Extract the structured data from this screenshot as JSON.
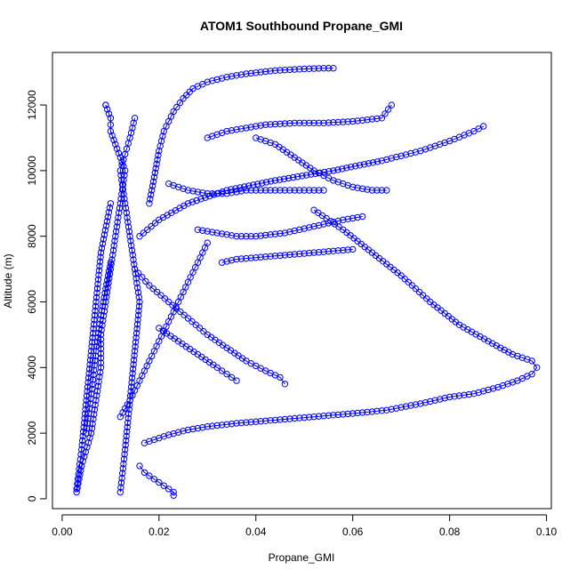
{
  "chart_data": {
    "type": "scatter",
    "title": "ATOM1 Southbound Propane_GMI",
    "xlabel": "Propane_GMI",
    "ylabel": "Altitude (m)",
    "xlim": [
      -0.002,
      0.101
    ],
    "ylim": [
      -300,
      13600
    ],
    "x_ticks": [
      0.0,
      0.02,
      0.04,
      0.06,
      0.08,
      0.1
    ],
    "x_tick_labels": [
      "0.00",
      "0.02",
      "0.04",
      "0.06",
      "0.08",
      "0.10"
    ],
    "y_ticks": [
      0,
      2000,
      4000,
      6000,
      8000,
      10000,
      12000
    ],
    "y_tick_labels": [
      "0",
      "2000",
      "4000",
      "6000",
      "8000",
      "10000",
      "12000"
    ],
    "grid": false,
    "marker": "open-circle",
    "color": "#0000ff",
    "series": [
      {
        "x": [
          0.003,
          0.004,
          0.006,
          0.007,
          0.008,
          0.008,
          0.009,
          0.01,
          0.011,
          0.012,
          0.013,
          0.012,
          0.011,
          0.01,
          0.01,
          0.009,
          0.009
        ],
        "y": [
          200,
          1000,
          2000,
          3000,
          4000,
          5000,
          6000,
          7000,
          8000,
          9000,
          10000,
          10400,
          10800,
          11200,
          11600,
          12000,
          12000
        ]
      },
      {
        "x": [
          0.012,
          0.013,
          0.014,
          0.015,
          0.016,
          0.015,
          0.014,
          0.013,
          0.012,
          0.013,
          0.014,
          0.015
        ],
        "y": [
          200,
          1500,
          3000,
          4500,
          6000,
          7000,
          8000,
          9000,
          10000,
          10500,
          11000,
          11600
        ]
      },
      {
        "x": [
          0.018,
          0.019,
          0.02,
          0.021,
          0.023,
          0.025,
          0.027,
          0.03,
          0.034,
          0.038,
          0.044,
          0.05,
          0.054,
          0.056
        ],
        "y": [
          9000,
          9800,
          10600,
          11200,
          11800,
          12200,
          12500,
          12700,
          12850,
          12950,
          13050,
          13100,
          13120,
          13120
        ]
      },
      {
        "x": [
          0.017,
          0.019,
          0.022,
          0.026,
          0.03,
          0.036,
          0.044,
          0.052,
          0.06,
          0.067,
          0.074,
          0.08,
          0.085,
          0.09,
          0.094,
          0.097,
          0.098,
          0.097,
          0.093,
          0.088,
          0.082,
          0.076,
          0.07,
          0.064,
          0.058,
          0.052
        ],
        "y": [
          1700,
          1800,
          1950,
          2100,
          2200,
          2300,
          2400,
          2500,
          2600,
          2700,
          2900,
          3100,
          3200,
          3400,
          3600,
          3800,
          4000,
          4200,
          4400,
          4800,
          5300,
          6000,
          6800,
          7500,
          8200,
          8800
        ]
      },
      {
        "x": [
          0.016,
          0.02,
          0.026,
          0.034,
          0.044,
          0.056,
          0.066,
          0.074,
          0.08,
          0.085,
          0.087
        ],
        "y": [
          8000,
          8500,
          9000,
          9400,
          9700,
          10000,
          10300,
          10600,
          10900,
          11200,
          11350
        ]
      },
      {
        "x": [
          0.015,
          0.018,
          0.022,
          0.026,
          0.03,
          0.034,
          0.038,
          0.042,
          0.045,
          0.046
        ],
        "y": [
          7000,
          6500,
          6000,
          5500,
          5000,
          4600,
          4200,
          3900,
          3700,
          3500
        ]
      },
      {
        "x": [
          0.04,
          0.044,
          0.048,
          0.052,
          0.056,
          0.06,
          0.064,
          0.067
        ],
        "y": [
          11000,
          10800,
          10400,
          10000,
          9700,
          9500,
          9400,
          9400
        ]
      },
      {
        "x": [
          0.03,
          0.034,
          0.038,
          0.042,
          0.048,
          0.054,
          0.06,
          0.066,
          0.068
        ],
        "y": [
          11000,
          11200,
          11300,
          11400,
          11450,
          11450,
          11500,
          11600,
          12000
        ]
      },
      {
        "x": [
          0.02,
          0.024,
          0.028,
          0.032,
          0.034,
          0.036
        ],
        "y": [
          5200,
          4800,
          4400,
          4000,
          3800,
          3600
        ]
      },
      {
        "x": [
          0.022,
          0.026,
          0.03,
          0.034,
          0.038,
          0.042,
          0.046,
          0.05,
          0.054
        ],
        "y": [
          9600,
          9400,
          9300,
          9300,
          9400,
          9400,
          9400,
          9400,
          9400
        ]
      },
      {
        "x": [
          0.003,
          0.004,
          0.005,
          0.006,
          0.007,
          0.008,
          0.01
        ],
        "y": [
          300,
          1500,
          3000,
          4500,
          6000,
          7500,
          9000
        ]
      },
      {
        "x": [
          0.005,
          0.006,
          0.007,
          0.008,
          0.009,
          0.01
        ],
        "y": [
          2000,
          3200,
          4500,
          5600,
          6400,
          7200
        ]
      },
      {
        "x": [
          0.016,
          0.017,
          0.019,
          0.021,
          0.023,
          0.023
        ],
        "y": [
          1000,
          800,
          600,
          400,
          200,
          100
        ]
      },
      {
        "x": [
          0.033,
          0.036,
          0.04,
          0.044,
          0.048,
          0.052,
          0.056,
          0.06
        ],
        "y": [
          7200,
          7300,
          7350,
          7400,
          7450,
          7500,
          7550,
          7600
        ]
      },
      {
        "x": [
          0.028,
          0.032,
          0.036,
          0.04,
          0.046,
          0.052,
          0.058,
          0.062
        ],
        "y": [
          8200,
          8100,
          8000,
          8000,
          8100,
          8300,
          8500,
          8600
        ]
      },
      {
        "x": [
          0.012,
          0.014,
          0.016,
          0.018,
          0.02,
          0.022,
          0.024,
          0.026,
          0.028,
          0.03
        ],
        "y": [
          2500,
          3000,
          3600,
          4200,
          4800,
          5400,
          6000,
          6600,
          7200,
          7800
        ]
      }
    ]
  }
}
